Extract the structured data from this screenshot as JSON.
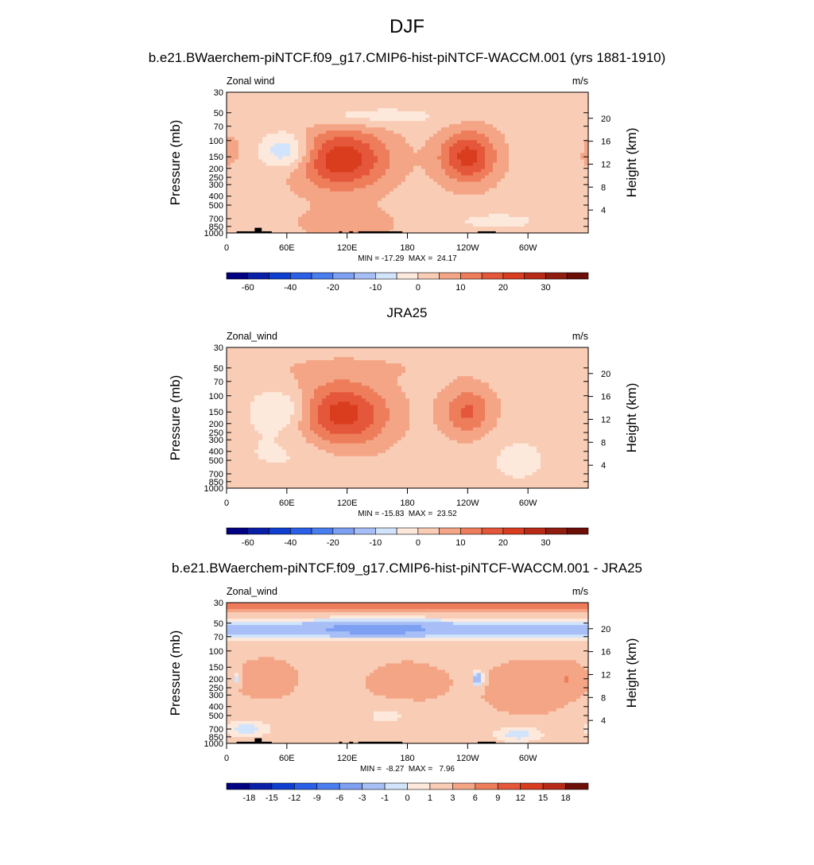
{
  "figure": {
    "title": "DJF"
  },
  "chart_data": [
    {
      "type": "heatmap",
      "title": "b.e21.BWaerchem-piNTCF.f09_g17.CMIP6-hist-piNTCF-WACCM.001 (yrs 1881-1910)",
      "variable_label": "Zonal wind",
      "units": "m/s",
      "xlabel": "",
      "ylabel": "Pressure (mb)",
      "ylabel_right": "Height (km)",
      "x_ticks": [
        "0",
        "60E",
        "120E",
        "180",
        "120W",
        "60W"
      ],
      "y_ticks": [
        "30",
        "50",
        "70",
        "100",
        "150",
        "200",
        "250",
        "300",
        "400",
        "500",
        "700",
        "850",
        "1000"
      ],
      "y_right_ticks": [
        "20",
        "16",
        "12",
        "8",
        "4"
      ],
      "stats": "MIN = -17.29  MAX =  24.17",
      "min": -17.29,
      "max": 24.17,
      "colorbar_labels": [
        "-60",
        "-40",
        "-20",
        "-10",
        "0",
        "10",
        "20",
        "30"
      ],
      "features": [
        {
          "lon": 115,
          "p": 160,
          "value": 24
        },
        {
          "lon": 240,
          "p": 150,
          "value": 22
        },
        {
          "lon": 45,
          "p": 130,
          "value": -10
        },
        {
          "lon": 2,
          "p": 150,
          "value": 6
        }
      ],
      "terrain": [
        [
          10,
          28
        ],
        [
          28,
          35
        ],
        [
          35,
          45
        ],
        [
          112,
          115
        ],
        [
          122,
          126
        ],
        [
          131,
          175
        ],
        [
          250,
          268
        ]
      ]
    },
    {
      "type": "heatmap",
      "title": "JRA25",
      "variable_label": "Zonal_wind",
      "units": "m/s",
      "xlabel": "",
      "ylabel": "Pressure (mb)",
      "ylabel_right": "Height (km)",
      "x_ticks": [
        "0",
        "60E",
        "120E",
        "180",
        "120W",
        "60W"
      ],
      "y_ticks": [
        "30",
        "50",
        "70",
        "100",
        "150",
        "200",
        "250",
        "300",
        "400",
        "500",
        "700",
        "850",
        "1000"
      ],
      "y_right_ticks": [
        "20",
        "16",
        "12",
        "8",
        "4"
      ],
      "stats": "MIN = -15.83  MAX =  23.52",
      "min": -15.83,
      "max": 23.52,
      "colorbar_labels": [
        "-60",
        "-40",
        "-20",
        "-10",
        "0",
        "10",
        "20",
        "30"
      ],
      "features": [
        {
          "lon": 115,
          "p": 160,
          "value": 23
        },
        {
          "lon": 240,
          "p": 150,
          "value": 17
        },
        {
          "lon": 45,
          "p": 150,
          "value": -8
        }
      ],
      "terrain": []
    },
    {
      "type": "heatmap",
      "title": "b.e21.BWaerchem-piNTCF.f09_g17.CMIP6-hist-piNTCF-WACCM.001 - JRA25",
      "variable_label": "Zonal_wind",
      "units": "m/s",
      "xlabel": "",
      "ylabel": "Pressure (mb)",
      "ylabel_right": "Height (km)",
      "x_ticks": [
        "0",
        "60E",
        "120E",
        "180",
        "120W",
        "60W"
      ],
      "y_ticks": [
        "30",
        "50",
        "70",
        "100",
        "150",
        "200",
        "250",
        "300",
        "400",
        "500",
        "700",
        "850",
        "1000"
      ],
      "y_right_ticks": [
        "20",
        "16",
        "12",
        "8",
        "4"
      ],
      "stats": "MIN =  -8.27  MAX =   7.96",
      "min": -8.27,
      "max": 7.96,
      "colorbar_labels": [
        "-18",
        "-15",
        "-12",
        "-9",
        "-6",
        "-3",
        "-1",
        "0",
        "1",
        "3",
        "6",
        "9",
        "12",
        "15",
        "18"
      ],
      "features": [
        {
          "lon": 140,
          "p": 55,
          "value": -7
        },
        {
          "lon": 40,
          "p": 200,
          "value": 4
        },
        {
          "lon": 170,
          "p": 200,
          "value": 4
        }
      ],
      "terrain": [
        [
          10,
          28
        ],
        [
          28,
          35
        ],
        [
          35,
          45
        ],
        [
          112,
          115
        ],
        [
          122,
          126
        ],
        [
          131,
          175
        ],
        [
          250,
          268
        ]
      ]
    }
  ],
  "colors": {
    "colorbar_main": [
      "#000082",
      "#0a1fa8",
      "#0f3fd0",
      "#2a5fe6",
      "#4a7ef0",
      "#7ea0f2",
      "#a7bff6",
      "#d2e4fb",
      "#fde9dc",
      "#f9ccb5",
      "#f4a585",
      "#ee7d5b",
      "#e5573a",
      "#d93d1e",
      "#b82a15",
      "#8f1d10",
      "#6d0e08"
    ],
    "colorbar_diff": [
      "#000082",
      "#0a1fa8",
      "#0f3fd0",
      "#2a5fe6",
      "#4a7ef0",
      "#7ea0f2",
      "#a7bff6",
      "#d2e4fb",
      "#fde9dc",
      "#f9ccb5",
      "#f4a585",
      "#ee7d5b",
      "#e5573a",
      "#d93d1e",
      "#b82a15",
      "#6d0e08"
    ]
  }
}
